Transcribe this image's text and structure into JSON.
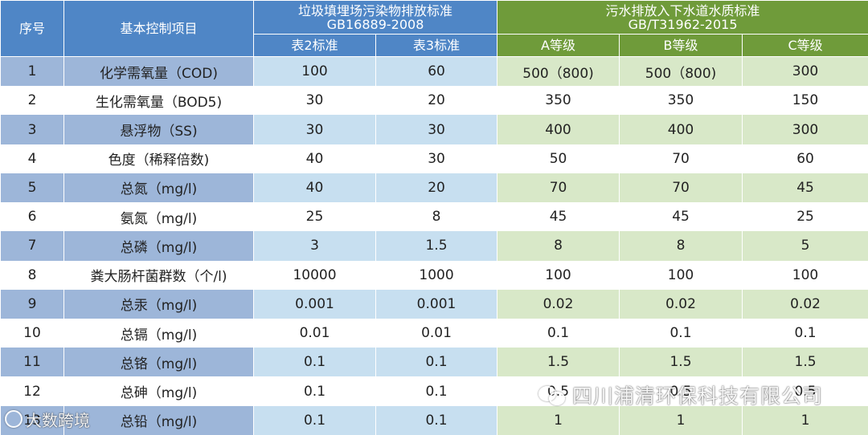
{
  "header": {
    "no": "序号",
    "item": "基本控制项目",
    "gb_title": "垃圾填埋场污染物排放标准",
    "gb_code": "GB16889-2008",
    "tb_title": "污水排放入下水道水质标准",
    "tb_code": "GB/T31962-2015",
    "sub": [
      "表2标准",
      "表3标准",
      "A等级",
      "B等级",
      "C等级"
    ]
  },
  "rows": [
    {
      "no": "1",
      "item": "化学需氧量（COD)",
      "t2": "100",
      "t3": "60",
      "a": "500（800)",
      "b": "500（800)",
      "c": "300"
    },
    {
      "no": "2",
      "item": "生化需氧量（BOD5)",
      "t2": "30",
      "t3": "20",
      "a": "350",
      "b": "350",
      "c": "150"
    },
    {
      "no": "3",
      "item": "悬浮物（SS)",
      "t2": "30",
      "t3": "30",
      "a": "400",
      "b": "400",
      "c": "300"
    },
    {
      "no": "4",
      "item": "色度（稀释倍数)",
      "t2": "40",
      "t3": "30",
      "a": "50",
      "b": "70",
      "c": "60"
    },
    {
      "no": "5",
      "item": "总氮（mg/l)",
      "t2": "40",
      "t3": "20",
      "a": "70",
      "b": "70",
      "c": "45"
    },
    {
      "no": "6",
      "item": "氨氮（mg/l)",
      "t2": "25",
      "t3": "8",
      "a": "45",
      "b": "45",
      "c": "25"
    },
    {
      "no": "7",
      "item": "总磷（mg/l)",
      "t2": "3",
      "t3": "1.5",
      "a": "8",
      "b": "8",
      "c": "5"
    },
    {
      "no": "8",
      "item": "粪大肠杆菌群数（个/l)",
      "t2": "10000",
      "t3": "1000",
      "a": "100",
      "b": "100",
      "c": "100"
    },
    {
      "no": "9",
      "item": "总汞（mg/l)",
      "t2": "0.001",
      "t3": "0.001",
      "a": "0.02",
      "b": "0.02",
      "c": "0.02"
    },
    {
      "no": "10",
      "item": "总镉（mg/l)",
      "t2": "0.01",
      "t3": "0.01",
      "a": "0.1",
      "b": "0.1",
      "c": "0.1"
    },
    {
      "no": "11",
      "item": "总铬（mg/l)",
      "t2": "0.1",
      "t3": "0.1",
      "a": "1.5",
      "b": "1.5",
      "c": "1.5"
    },
    {
      "no": "12",
      "item": "总砷（mg/l)",
      "t2": "0.1",
      "t3": "0.1",
      "a": "0.5",
      "b": "0.5",
      "c": "0.5"
    },
    {
      "no": "13",
      "item": "总铅（mg/l)",
      "t2": "0.1",
      "t3": "0.1",
      "a": "1",
      "b": "1",
      "c": "1"
    }
  ],
  "watermarks": {
    "company": "四川浦清环保科技有限公司",
    "source": "大数跨境"
  }
}
